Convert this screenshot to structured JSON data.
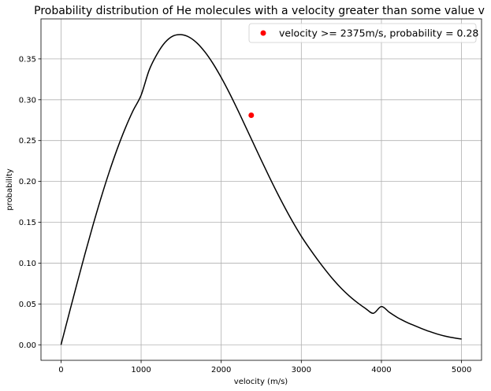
{
  "chart_data": {
    "type": "line",
    "title": "Probability distribution of He molecules with a velocity greater than some value v",
    "xlabel": "velocity (m/s)",
    "ylabel": "probability",
    "xlim": [
      -250,
      5250
    ],
    "ylim": [
      -0.019,
      0.399
    ],
    "xticks": [
      0,
      1000,
      2000,
      3000,
      4000,
      5000
    ],
    "yticks": [
      0.0,
      0.05,
      0.1,
      0.15,
      0.2,
      0.25,
      0.3,
      0.35
    ],
    "grid": true,
    "legend_position": "top-right",
    "series": [
      {
        "style": "line",
        "color": "#000000",
        "x": [
          0,
          100,
          200,
          300,
          400,
          500,
          600,
          700,
          800,
          900,
          1000,
          1100,
          1200,
          1300,
          1400,
          1500,
          1600,
          1700,
          1800,
          1900,
          2000,
          2100,
          2200,
          2300,
          2400,
          2500,
          2600,
          2700,
          2800,
          2900,
          3000,
          3100,
          3200,
          3300,
          3400,
          3500,
          3600,
          3700,
          3800,
          3900,
          4000,
          4100,
          4200,
          4300,
          4400,
          4500,
          4600,
          4700,
          4800,
          4900,
          5000
        ],
        "y": [
          0.0,
          0.0377,
          0.0751,
          0.1116,
          0.1467,
          0.18,
          0.211,
          0.2393,
          0.2646,
          0.2867,
          0.3056,
          0.3361,
          0.356,
          0.3703,
          0.3781,
          0.3797,
          0.3766,
          0.3692,
          0.3581,
          0.3439,
          0.3272,
          0.3087,
          0.2888,
          0.268,
          0.247,
          0.2261,
          0.2056,
          0.1858,
          0.167,
          0.1493,
          0.1329,
          0.1183,
          0.1046,
          0.0917,
          0.0797,
          0.069,
          0.0597,
          0.0516,
          0.0446,
          0.0386,
          0.0468,
          0.0397,
          0.0334,
          0.0283,
          0.024,
          0.02,
          0.0163,
          0.0131,
          0.0105,
          0.0086,
          0.007
        ]
      },
      {
        "name": "velocity >= 2375m/s, probability = 0.28",
        "style": "scatter",
        "color": "#ff0000",
        "x": [
          2375
        ],
        "y": [
          0.281
        ]
      }
    ]
  }
}
